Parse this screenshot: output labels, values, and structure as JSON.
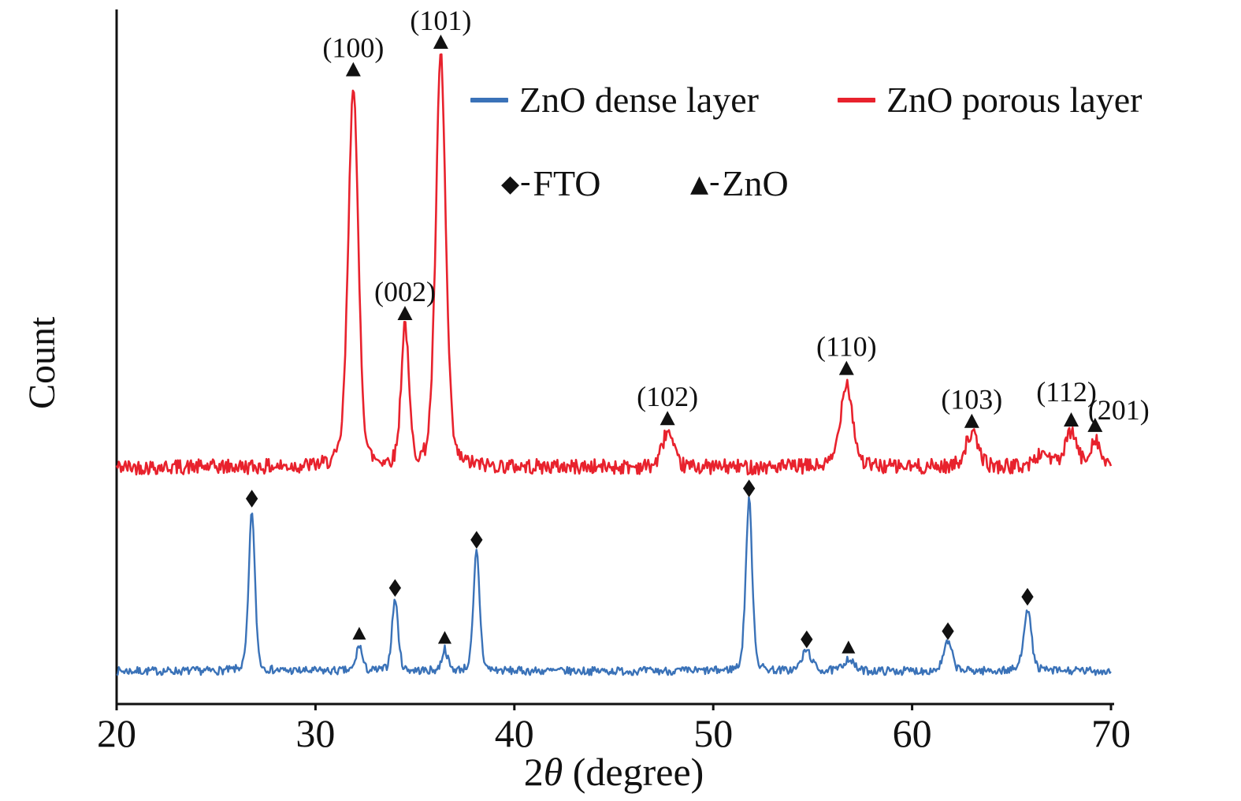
{
  "chart_data": {
    "type": "line",
    "title": "",
    "xlabel": "2θ (degree)",
    "xlabel_parts": {
      "prefix": "2",
      "theta": "θ",
      "suffix": " (degree)"
    },
    "ylabel": "Count",
    "xlim": [
      20,
      70
    ],
    "x_ticks": [
      20,
      30,
      40,
      50,
      60,
      70
    ],
    "y_tick_labels": "none (arbitrary intensity)",
    "grid": false,
    "legend_position": "top-inside",
    "marker_dash": "-",
    "legend": [
      {
        "label": "ZnO dense layer",
        "type": "line",
        "color": "#3a72b8"
      },
      {
        "label": "ZnO porous layer",
        "type": "line",
        "color": "#e8222d"
      },
      {
        "label": "FTO",
        "type": "marker",
        "marker": "diamond",
        "color": "#111111"
      },
      {
        "label": "ZnO",
        "type": "marker",
        "marker": "triangle",
        "color": "#111111"
      }
    ],
    "value_units": "peak heights normalized to plot height (arbitrary counts)",
    "series": [
      {
        "name": "ZnO porous layer",
        "slug": "porous",
        "color": "#e8222d",
        "baseline": 0.345,
        "noise": 0.011,
        "seed": 42,
        "line_width": 2.6,
        "marker_offset": 16,
        "marker_size": 10,
        "peaks": [
          {
            "x": 31.9,
            "height": 0.56,
            "sigma": 0.26,
            "label": "(100)",
            "marker": "triangle"
          },
          {
            "x": 34.5,
            "height": 0.205,
            "sigma": 0.2,
            "label": "(002)",
            "marker": "triangle"
          },
          {
            "x": 36.3,
            "height": 0.6,
            "sigma": 0.26,
            "label": "(101)",
            "marker": "triangle"
          },
          {
            "x": 47.7,
            "height": 0.052,
            "sigma": 0.28,
            "label": "(102)",
            "marker": "triangle"
          },
          {
            "x": 56.7,
            "height": 0.125,
            "sigma": 0.32,
            "label": "(110)",
            "marker": "triangle"
          },
          {
            "x": 63.0,
            "height": 0.048,
            "sigma": 0.35,
            "label": "(103)",
            "marker": "triangle"
          },
          {
            "x": 66.6,
            "height": 0.02,
            "sigma": 0.4
          },
          {
            "x": 68.0,
            "height": 0.05,
            "sigma": 0.3,
            "label": "(112)",
            "marker": "triangle",
            "label_dx": -6,
            "label_dy": -8
          },
          {
            "x": 69.2,
            "height": 0.042,
            "sigma": 0.25,
            "label": "(201)",
            "marker": "triangle",
            "label_dx": 30,
            "label_dy": 8
          }
        ]
      },
      {
        "name": "ZnO dense layer",
        "slug": "dense",
        "color": "#3a72b8",
        "baseline": 0.048,
        "noise": 0.006,
        "seed": 7,
        "line_width": 2.4,
        "marker_offset": 14,
        "marker_size": 9,
        "peaks": [
          {
            "x": 26.8,
            "height": 0.235,
            "sigma": 0.16,
            "marker": "diamond"
          },
          {
            "x": 32.2,
            "height": 0.038,
            "sigma": 0.15,
            "marker": "triangle"
          },
          {
            "x": 34.0,
            "height": 0.105,
            "sigma": 0.16,
            "marker": "diamond"
          },
          {
            "x": 36.5,
            "height": 0.032,
            "sigma": 0.15,
            "marker": "triangle"
          },
          {
            "x": 38.1,
            "height": 0.175,
            "sigma": 0.16,
            "marker": "diamond"
          },
          {
            "x": 51.8,
            "height": 0.25,
            "sigma": 0.17,
            "marker": "diamond"
          },
          {
            "x": 54.7,
            "height": 0.03,
            "sigma": 0.25,
            "marker": "diamond"
          },
          {
            "x": 56.8,
            "height": 0.018,
            "sigma": 0.25,
            "marker": "triangle"
          },
          {
            "x": 61.8,
            "height": 0.042,
            "sigma": 0.22,
            "marker": "diamond"
          },
          {
            "x": 65.8,
            "height": 0.092,
            "sigma": 0.2,
            "marker": "diamond"
          }
        ]
      }
    ]
  }
}
